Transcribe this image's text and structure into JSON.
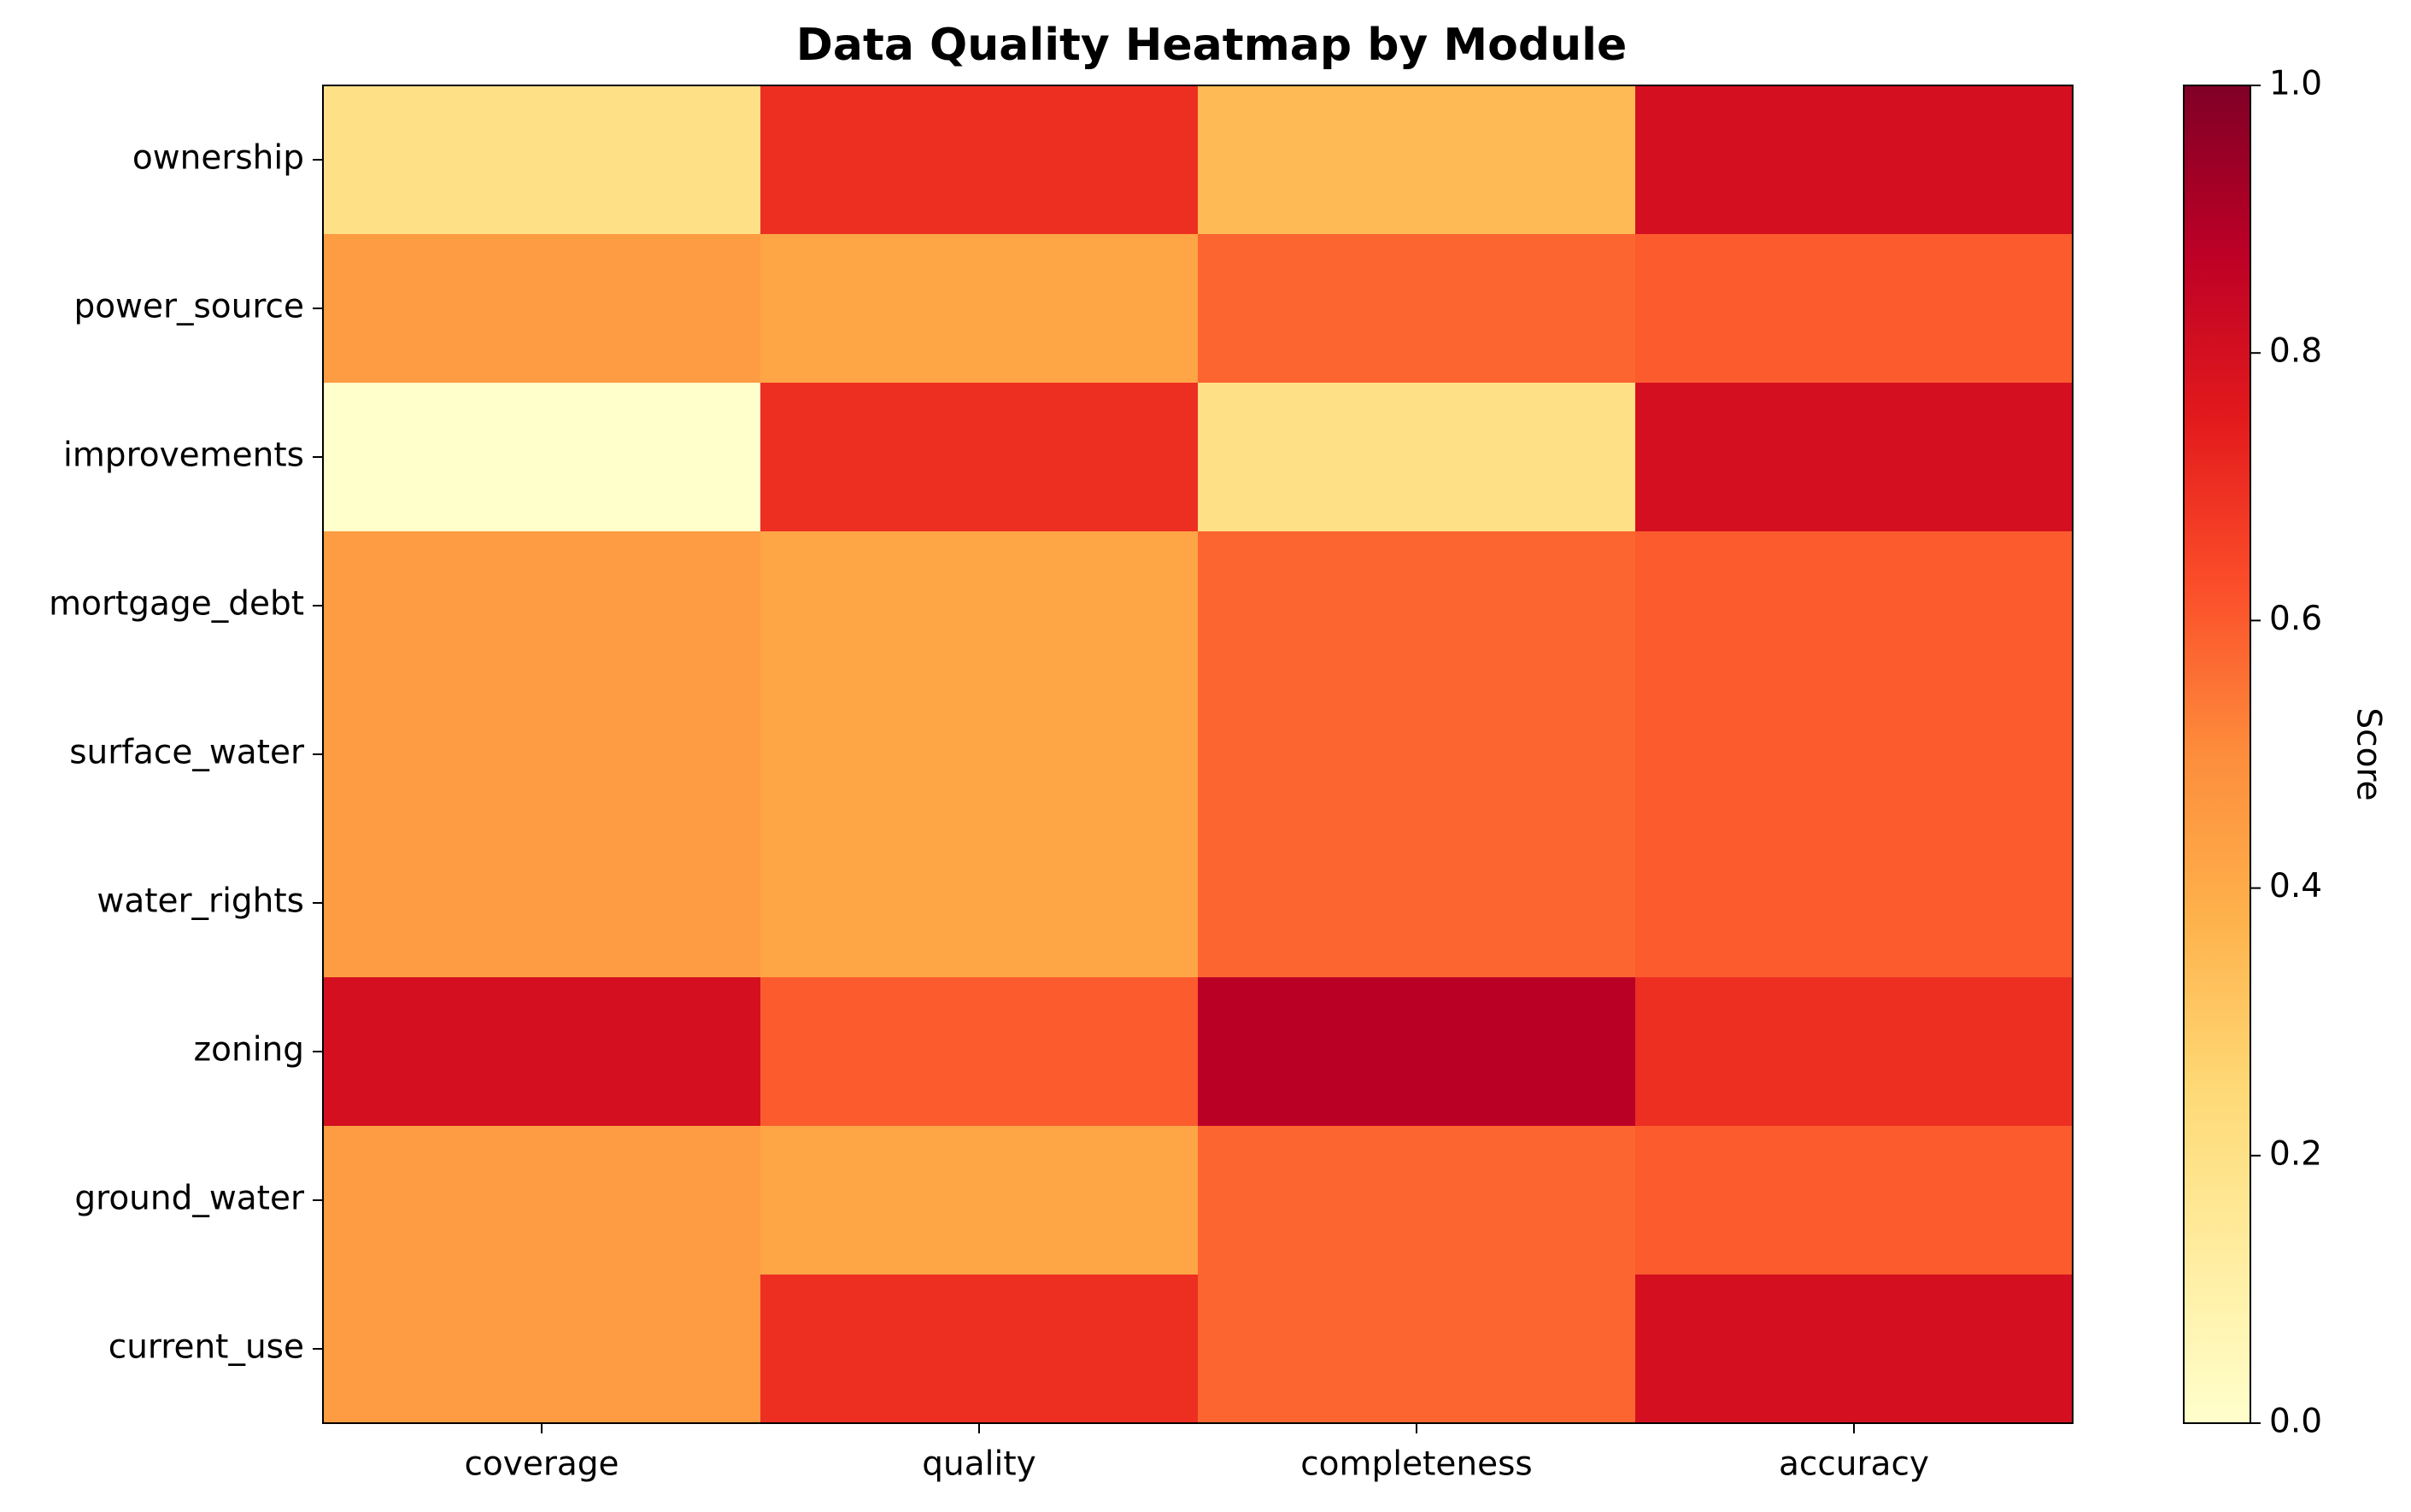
{
  "chart_data": {
    "type": "heatmap",
    "title": "Data Quality Heatmap by Module",
    "columns": [
      "coverage",
      "quality",
      "completeness",
      "accuracy"
    ],
    "rows": [
      "ownership",
      "power_source",
      "improvements",
      "mortgage_debt",
      "surface_water",
      "water_rights",
      "zoning",
      "ground_water",
      "current_use"
    ],
    "values": [
      [
        0.2,
        0.7,
        0.35,
        0.8
      ],
      [
        0.45,
        0.42,
        0.58,
        0.6
      ],
      [
        0.0,
        0.7,
        0.2,
        0.8
      ],
      [
        0.45,
        0.42,
        0.58,
        0.6
      ],
      [
        0.45,
        0.42,
        0.58,
        0.6
      ],
      [
        0.45,
        0.42,
        0.58,
        0.6
      ],
      [
        0.8,
        0.6,
        0.88,
        0.7
      ],
      [
        0.45,
        0.42,
        0.58,
        0.6
      ],
      [
        0.45,
        0.7,
        0.58,
        0.8
      ]
    ],
    "colormap": "YlOrRd",
    "colormap_stops": [
      "#ffffcc",
      "#ffeda0",
      "#fed976",
      "#feb24c",
      "#fd8d3c",
      "#fc4e2a",
      "#e31a1c",
      "#bd0026",
      "#800026"
    ],
    "vmin": 0.0,
    "vmax": 1.0,
    "colorbar": {
      "label": "Score",
      "ticks": [
        "0.0",
        "0.2",
        "0.4",
        "0.6",
        "0.8",
        "1.0"
      ]
    }
  }
}
